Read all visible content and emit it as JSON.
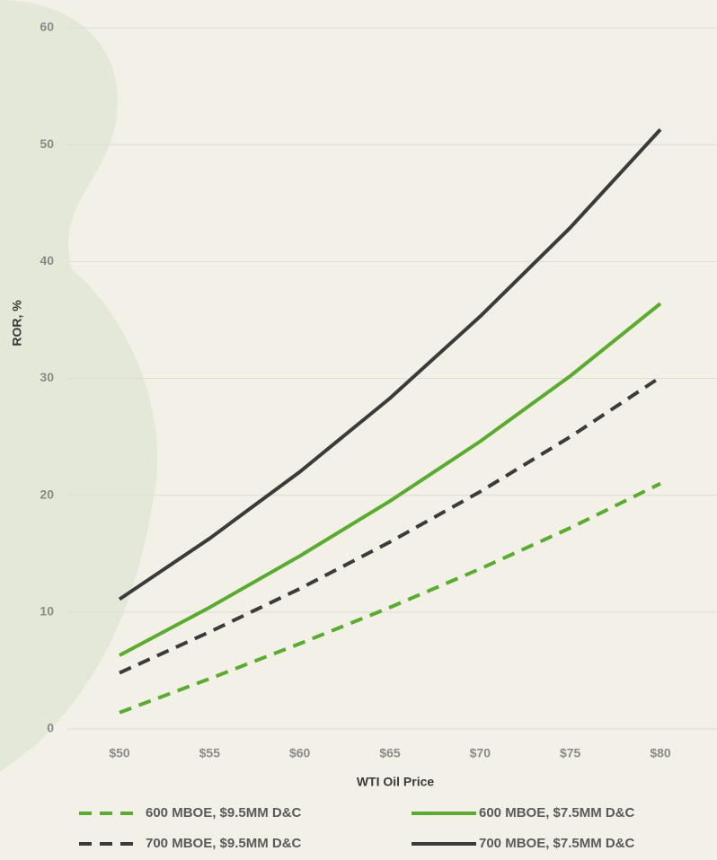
{
  "chart_data": {
    "type": "line",
    "x_label": "WTI Oil Price",
    "y_label": "ROR, %",
    "categories": [
      "$50",
      "$55",
      "$60",
      "$65",
      "$70",
      "$75",
      "$80"
    ],
    "series": [
      {
        "name": "600 MBOE, $9.5MM D&C",
        "color": "#5aab30",
        "dashed": true,
        "values": [
          1.4,
          4.3,
          7.3,
          10.4,
          13.7,
          17.2,
          21.0
        ]
      },
      {
        "name": "600 MBOE, $7.5MM D&C",
        "color": "#5aab30",
        "dashed": false,
        "values": [
          6.3,
          10.4,
          14.8,
          19.5,
          24.6,
          30.2,
          36.4
        ]
      },
      {
        "name": "700 MBOE, $9.5MM D&C",
        "color": "#3b3b3b",
        "dashed": true,
        "values": [
          4.8,
          8.3,
          12.0,
          16.0,
          20.3,
          25.0,
          30.1
        ]
      },
      {
        "name": "700 MBOE, $7.5MM D&C",
        "color": "#3b3b3b",
        "dashed": false,
        "values": [
          11.1,
          16.3,
          22.0,
          28.3,
          35.3,
          42.9,
          51.3
        ]
      }
    ],
    "ylim": [
      0,
      60
    ],
    "yticks": [
      0,
      10,
      20,
      30,
      40,
      50,
      60
    ],
    "grid": true
  }
}
